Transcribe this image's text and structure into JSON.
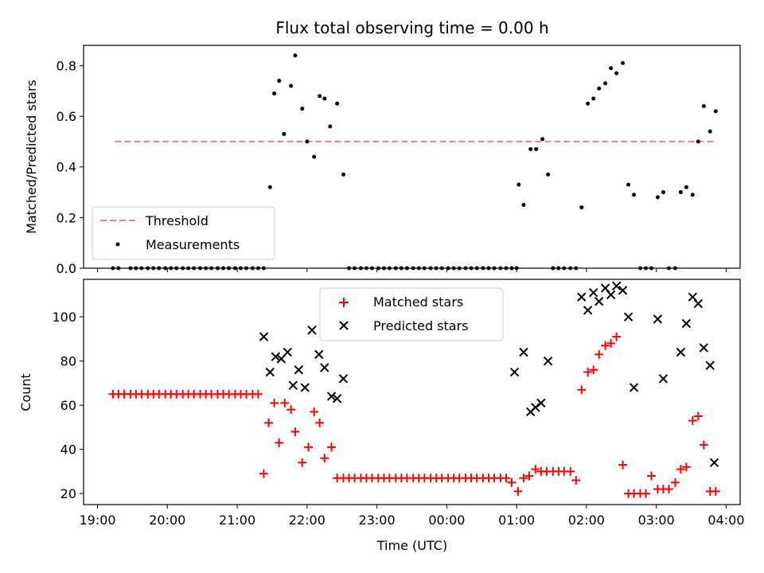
{
  "title": "Flux total observing time = 0.00 h",
  "xlabel": "Time (UTC)",
  "chart_data": [
    {
      "type": "scatter",
      "ylabel": "Matched/Predicted stars",
      "ylim": [
        0,
        0.88
      ],
      "yticks": [
        "0.0",
        "0.2",
        "0.4",
        "0.6",
        "0.8"
      ],
      "legend_position": "lower-left",
      "threshold": {
        "name": "Threshold",
        "value": 0.5,
        "x_start": 19.25,
        "x_end": 27.83,
        "color": "#f08080"
      },
      "series": [
        {
          "name": "Measurements",
          "color": "#000000",
          "x": [
            19.22,
            19.3,
            19.47,
            19.55,
            19.63,
            19.72,
            19.8,
            19.88,
            19.97,
            20.05,
            20.13,
            20.22,
            20.3,
            20.38,
            20.47,
            20.55,
            20.63,
            20.72,
            20.8,
            20.88,
            20.97,
            21.05,
            21.13,
            21.22,
            21.3,
            21.38,
            21.47,
            21.53,
            21.6,
            21.67,
            21.77,
            21.83,
            21.93,
            22.0,
            22.1,
            22.18,
            22.25,
            22.33,
            22.43,
            22.52,
            22.6,
            22.68,
            22.77,
            22.85,
            22.93,
            23.02,
            23.1,
            23.18,
            23.27,
            23.35,
            23.43,
            23.52,
            23.6,
            23.68,
            23.77,
            23.85,
            23.93,
            24.02,
            24.1,
            24.18,
            24.27,
            24.35,
            24.43,
            24.52,
            24.6,
            24.68,
            24.77,
            24.85,
            24.93,
            25.0,
            25.03,
            25.1,
            25.2,
            25.28,
            25.37,
            25.45,
            25.52,
            25.6,
            25.68,
            25.77,
            25.85,
            25.93,
            26.02,
            26.1,
            26.18,
            26.27,
            26.35,
            26.43,
            26.52,
            26.6,
            26.68,
            26.77,
            26.85,
            26.93,
            27.02,
            27.1,
            27.18,
            27.27,
            27.35,
            27.43,
            27.52,
            27.6,
            27.68,
            27.77,
            27.85
          ],
          "y": [
            0,
            0,
            0,
            0,
            0,
            0,
            0,
            0,
            0,
            0,
            0,
            0,
            0,
            0,
            0,
            0,
            0,
            0,
            0,
            0,
            0,
            0,
            0,
            0,
            0,
            0,
            0.32,
            0.69,
            0.74,
            0.53,
            0.72,
            0.84,
            0.63,
            0.5,
            0.44,
            0.68,
            0.67,
            0.56,
            0.65,
            0.37,
            0,
            0,
            0,
            0,
            0,
            0,
            0,
            0,
            0,
            0,
            0,
            0,
            0,
            0,
            0,
            0,
            0,
            0,
            0,
            0,
            0,
            0,
            0,
            0,
            0,
            0,
            0,
            0,
            0,
            0,
            0.33,
            0.25,
            0.47,
            0.47,
            0.51,
            0.37,
            0,
            0,
            0,
            0,
            0,
            0.24,
            0.65,
            0.67,
            0.71,
            0.73,
            0.79,
            0.77,
            0.81,
            0.33,
            0.29,
            0,
            0,
            0,
            0.28,
            0.3,
            0,
            0,
            0.3,
            0.32,
            0.29,
            0.5,
            0.64,
            0.54,
            0.62
          ]
        }
      ]
    },
    {
      "type": "scatter",
      "ylabel": "Count",
      "ylim": [
        15,
        117
      ],
      "yticks": [
        "20",
        "40",
        "60",
        "80",
        "100"
      ],
      "legend_position": "upper-center",
      "series": [
        {
          "name": "Matched stars",
          "marker": "+",
          "color": "#ff0000",
          "x": [
            19.22,
            19.3,
            19.38,
            19.47,
            19.55,
            19.63,
            19.72,
            19.8,
            19.88,
            19.97,
            20.05,
            20.13,
            20.22,
            20.3,
            20.38,
            20.47,
            20.55,
            20.63,
            20.72,
            20.8,
            20.88,
            20.97,
            21.05,
            21.13,
            21.22,
            21.3,
            21.38,
            21.45,
            21.53,
            21.6,
            21.68,
            21.77,
            21.83,
            21.93,
            22.02,
            22.1,
            22.18,
            22.25,
            22.35,
            22.43,
            22.52,
            22.6,
            22.68,
            22.77,
            22.85,
            22.93,
            23.02,
            23.1,
            23.18,
            23.27,
            23.35,
            23.43,
            23.52,
            23.6,
            23.68,
            23.77,
            23.85,
            23.93,
            24.02,
            24.1,
            24.18,
            24.27,
            24.35,
            24.43,
            24.52,
            24.6,
            24.68,
            24.77,
            24.85,
            24.93,
            25.02,
            25.1,
            25.18,
            25.27,
            25.35,
            25.43,
            25.52,
            25.6,
            25.68,
            25.77,
            25.85,
            25.93,
            26.02,
            26.1,
            26.18,
            26.27,
            26.35,
            26.43,
            26.52,
            26.6,
            26.68,
            26.77,
            26.85,
            26.93,
            27.02,
            27.1,
            27.18,
            27.27,
            27.35,
            27.43,
            27.52,
            27.6,
            27.68,
            27.77,
            27.85
          ],
          "y": [
            65,
            65,
            65,
            65,
            65,
            65,
            65,
            65,
            65,
            65,
            65,
            65,
            65,
            65,
            65,
            65,
            65,
            65,
            65,
            65,
            65,
            65,
            65,
            65,
            65,
            65,
            29,
            52,
            61,
            43,
            61,
            58,
            48,
            34,
            41,
            57,
            52,
            36,
            41,
            27,
            27,
            27,
            27,
            27,
            27,
            27,
            27,
            27,
            27,
            27,
            27,
            27,
            27,
            27,
            27,
            27,
            27,
            27,
            27,
            27,
            27,
            27,
            27,
            27,
            27,
            27,
            27,
            27,
            27,
            25,
            21,
            27,
            28,
            31,
            30,
            30,
            30,
            30,
            30,
            30,
            26,
            67,
            75,
            76,
            83,
            87,
            88,
            91,
            33,
            20,
            20,
            20,
            20,
            28,
            22,
            22,
            22,
            25,
            31,
            32,
            53,
            55,
            42,
            21,
            21
          ]
        },
        {
          "name": "Predicted stars",
          "marker": "x",
          "color": "#000000",
          "x": [
            21.38,
            21.47,
            21.55,
            21.63,
            21.72,
            21.8,
            21.88,
            21.97,
            22.07,
            22.17,
            22.25,
            22.35,
            22.43,
            22.52,
            24.97,
            25.1,
            25.2,
            25.27,
            25.35,
            25.45,
            25.93,
            26.02,
            26.1,
            26.18,
            26.27,
            26.35,
            26.43,
            26.52,
            26.6,
            26.68,
            27.02,
            27.1,
            27.35,
            27.43,
            27.52,
            27.6,
            27.68,
            27.77,
            27.83
          ],
          "y": [
            91,
            75,
            82,
            81,
            84,
            69,
            76,
            68,
            94,
            83,
            77,
            64,
            63,
            72,
            75,
            84,
            57,
            59,
            61,
            80,
            109,
            103,
            111,
            107,
            113,
            110,
            114,
            112,
            100,
            68,
            99,
            72,
            84,
            97,
            109,
            106,
            86,
            78,
            34
          ]
        }
      ]
    }
  ],
  "x_axis": {
    "xlim": [
      18.8,
      28.2
    ],
    "ticks": [
      {
        "v": 19,
        "label": "19:00"
      },
      {
        "v": 20,
        "label": "20:00"
      },
      {
        "v": 21,
        "label": "21:00"
      },
      {
        "v": 22,
        "label": "22:00"
      },
      {
        "v": 23,
        "label": "23:00"
      },
      {
        "v": 24,
        "label": "00:00"
      },
      {
        "v": 25,
        "label": "01:00"
      },
      {
        "v": 26,
        "label": "02:00"
      },
      {
        "v": 27,
        "label": "03:00"
      },
      {
        "v": 28,
        "label": "04:00"
      }
    ]
  }
}
